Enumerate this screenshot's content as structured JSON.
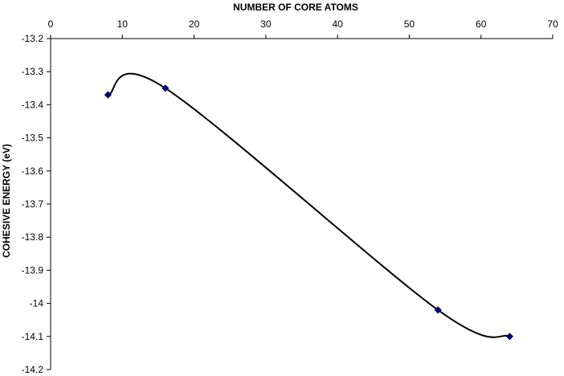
{
  "chart_data": {
    "type": "line",
    "title": "",
    "xlabel": "NUMBER OF CORE  ATOMS",
    "ylabel": "COHESIVE  ENERGY  (eV)",
    "x_axis_position": "top",
    "xlim": [
      0,
      70
    ],
    "ylim": [
      -14.2,
      -13.2
    ],
    "y_inverted": true,
    "x_ticks": [
      0,
      10,
      20,
      30,
      40,
      50,
      60,
      70
    ],
    "x_tick_labels": [
      "0",
      "10",
      "20",
      "30",
      "40",
      "50",
      "60",
      "70"
    ],
    "y_ticks": [
      -13.2,
      -13.3,
      -13.4,
      -13.5,
      -13.6,
      -13.7,
      -13.8,
      -13.9,
      -14,
      -14.1,
      -14.2
    ],
    "y_tick_labels": [
      "-13.2",
      "-13.3",
      "-13.4",
      "-13.5",
      "-13.6",
      "-13.7",
      "-13.8",
      "-13.9",
      "-14",
      "-14.1",
      "-14.2"
    ],
    "grid": false,
    "legend": "none",
    "series": [
      {
        "x": [
          8,
          16,
          54,
          64
        ],
        "y": [
          -13.37,
          -13.35,
          -14.02,
          -14.1
        ],
        "line_color": "#000000",
        "marker": "diamond",
        "marker_color": "#000080",
        "smooth": true
      }
    ]
  }
}
